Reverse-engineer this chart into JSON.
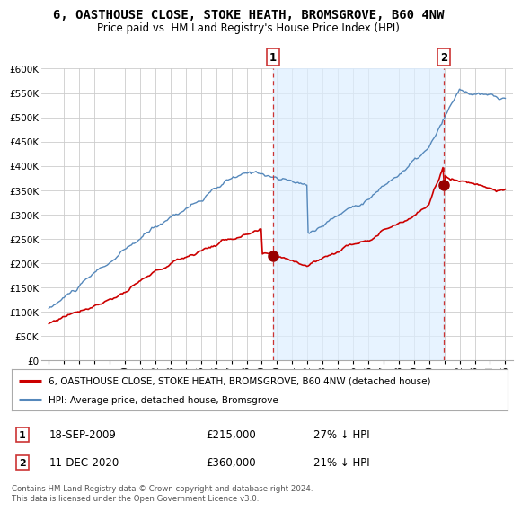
{
  "title": "6, OASTHOUSE CLOSE, STOKE HEATH, BROMSGROVE, B60 4NW",
  "subtitle": "Price paid vs. HM Land Registry's House Price Index (HPI)",
  "title_fontsize": 10,
  "subtitle_fontsize": 8.5,
  "ylim": [
    0,
    600000
  ],
  "yticks": [
    0,
    50000,
    100000,
    150000,
    200000,
    250000,
    300000,
    350000,
    400000,
    450000,
    500000,
    550000,
    600000
  ],
  "ytick_labels": [
    "£0",
    "£50K",
    "£100K",
    "£150K",
    "£200K",
    "£250K",
    "£300K",
    "£350K",
    "£400K",
    "£450K",
    "£500K",
    "£550K",
    "£600K"
  ],
  "xlim_start": 1994.5,
  "xlim_end": 2025.5,
  "sale1_date": "18-SEP-2009",
  "sale1_price": 215000,
  "sale1_pct": "27% ↓ HPI",
  "sale1_year": 2009.72,
  "sale2_date": "11-DEC-2020",
  "sale2_price": 360000,
  "sale2_pct": "21% ↓ HPI",
  "sale2_year": 2020.95,
  "red_color": "#cc0000",
  "blue_color": "#5588bb",
  "fill_color": "#ddeeff",
  "marker_color": "#990000",
  "legend_label_red": "6, OASTHOUSE CLOSE, STOKE HEATH, BROMSGROVE, B60 4NW (detached house)",
  "legend_label_blue": "HPI: Average price, detached house, Bromsgrove",
  "footer": "Contains HM Land Registry data © Crown copyright and database right 2024.\nThis data is licensed under the Open Government Licence v3.0.",
  "background_color": "#ffffff",
  "grid_color": "#cccccc",
  "hpi_seed": 10,
  "red_seed": 77
}
